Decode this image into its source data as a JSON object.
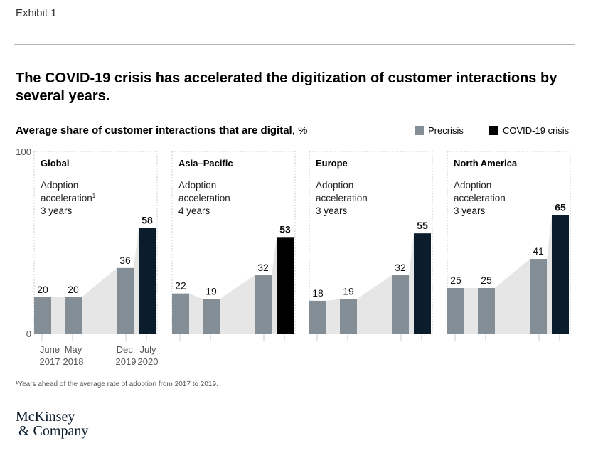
{
  "exhibit": "Exhibit 1",
  "title": "The COVID-19 crisis has accelerated the digitization of customer interactions by several years.",
  "footnote": "¹Years ahead of the average rate of adoption from 2017 to 2019.",
  "logo": {
    "line1": "McKinsey",
    "line2": "& Company"
  },
  "chart_data": {
    "type": "bar",
    "title": "Average share of customer interactions that are digital",
    "unit": "%",
    "ylim": [
      0,
      100
    ],
    "yticks": [
      "0",
      "100"
    ],
    "categories": [
      [
        "June",
        "2017"
      ],
      [
        "May",
        "2018"
      ],
      [
        "Dec.",
        "2019"
      ],
      [
        "July",
        "2020"
      ]
    ],
    "legend": [
      {
        "name": "Precrisis",
        "color": "#848e96"
      },
      {
        "name": "COVID-19 crisis",
        "color": "#0b1c2c"
      }
    ],
    "legend_placement": "top-right",
    "fill_color": "#e6e6e6",
    "panels": [
      {
        "name": "Global",
        "label1": "Adoption",
        "label2": "acceleration",
        "sup": "1",
        "label3": "3 years",
        "values": [
          20,
          20,
          36,
          58
        ],
        "crisis_color": "#0b1c2c"
      },
      {
        "name": "Asia–Pacific",
        "label1": "Adoption",
        "label2": "acceleration",
        "sup": "",
        "label3": "4 years",
        "values": [
          22,
          19,
          32,
          53
        ],
        "crisis_color": "#000000"
      },
      {
        "name": "Europe",
        "label1": "Adoption",
        "label2": "acceleration",
        "sup": "",
        "label3": "3 years",
        "values": [
          18,
          19,
          32,
          55
        ],
        "crisis_color": "#0b1c2c"
      },
      {
        "name": "North America",
        "label1": "Adoption",
        "label2": "acceleration",
        "sup": "",
        "label3": "3 years",
        "values": [
          25,
          25,
          41,
          65
        ],
        "crisis_color": "#0b1c2c"
      }
    ]
  }
}
